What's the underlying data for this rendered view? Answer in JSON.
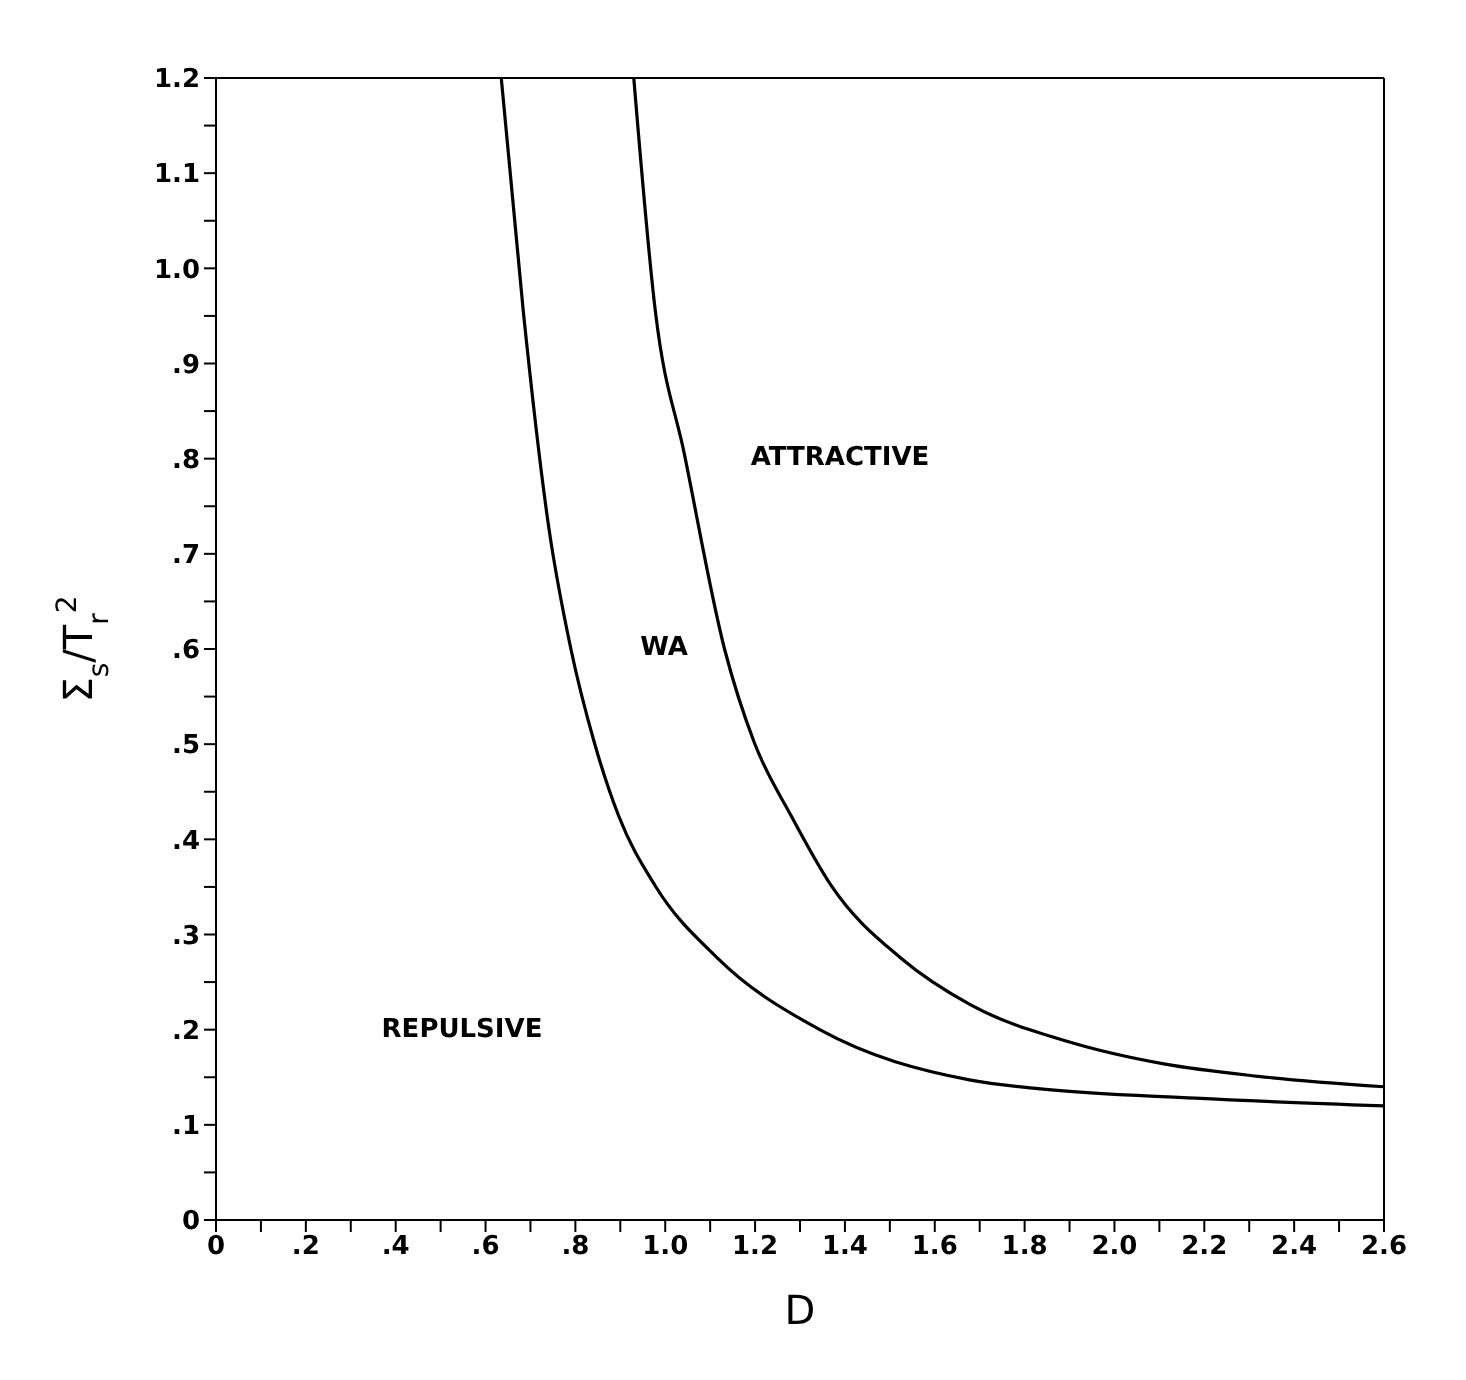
{
  "chart_data": {
    "type": "line",
    "xlabel": "D",
    "ylabel": "Σ$_{s}$/T$_{r}$$^{2}$",
    "xlim": [
      0,
      2.6
    ],
    "ylim": [
      0,
      1.2
    ],
    "xticks": [
      0,
      {
        "value": 0.1,
        "label": null
      },
      {
        "value": 0.2,
        "label": ".2"
      },
      {
        "value": 0.3,
        "label": null
      },
      {
        "value": 0.4,
        "label": ".4"
      },
      {
        "value": 0.5,
        "label": null
      },
      {
        "value": 0.6,
        "label": ".6"
      },
      {
        "value": 0.7,
        "label": null
      },
      {
        "value": 0.8,
        "label": ".8"
      },
      {
        "value": 0.9,
        "label": null
      },
      {
        "value": 1.0,
        "label": "1.0"
      },
      {
        "value": 1.1,
        "label": null
      },
      1.2,
      {
        "value": 1.3,
        "label": null
      },
      1.4,
      {
        "value": 1.5,
        "label": null
      },
      1.6,
      {
        "value": 1.7,
        "label": null
      },
      1.8,
      {
        "value": 1.9,
        "label": null
      },
      {
        "value": 2.0,
        "label": "2.0"
      },
      {
        "value": 2.1,
        "label": null
      },
      2.2,
      {
        "value": 2.3,
        "label": null
      },
      2.4,
      {
        "value": 2.5,
        "label": null
      },
      2.6
    ],
    "yticks": [
      0,
      {
        "value": 0.05,
        "label": null
      },
      {
        "value": 0.1,
        "label": ".1"
      },
      {
        "value": 0.15,
        "label": null
      },
      {
        "value": 0.2,
        "label": ".2"
      },
      {
        "value": 0.25,
        "label": null
      },
      {
        "value": 0.3,
        "label": ".3"
      },
      {
        "value": 0.35,
        "label": null
      },
      {
        "value": 0.4,
        "label": ".4"
      },
      {
        "value": 0.45,
        "label": null
      },
      {
        "value": 0.5,
        "label": ".5"
      },
      {
        "value": 0.55,
        "label": null
      },
      {
        "value": 0.6,
        "label": ".6"
      },
      {
        "value": 0.65,
        "label": null
      },
      {
        "value": 0.7,
        "label": ".7"
      },
      {
        "value": 0.75,
        "label": null
      },
      {
        "value": 0.8,
        "label": ".8"
      },
      {
        "value": 0.85,
        "label": null
      },
      {
        "value": 0.9,
        "label": ".9"
      },
      {
        "value": 0.95,
        "label": null
      },
      {
        "value": 1.0,
        "label": "1.0"
      },
      {
        "value": 1.05,
        "label": null
      },
      1.1,
      {
        "value": 1.15,
        "label": null
      },
      1.2
    ],
    "marker": "none",
    "line_style": "solid",
    "series": [
      {
        "color": "#000000",
        "x": [
          0.635,
          0.684,
          0.741,
          0.79,
          0.842,
          0.896,
          0.978,
          1.117,
          1.344,
          1.68,
          1.83,
          2.18,
          2.6
        ],
        "values": [
          1.2,
          0.955,
          0.727,
          0.6,
          0.502,
          0.425,
          0.351,
          0.275,
          0.2,
          0.147,
          0.138,
          0.128,
          0.12
        ]
      },
      {
        "color": "#000000",
        "x": [
          0.93,
          0.978,
          1.043,
          1.132,
          1.198,
          1.28,
          1.37,
          1.525,
          1.68,
          1.9,
          2.11,
          2.32,
          2.6
        ],
        "values": [
          1.2,
          0.955,
          0.804,
          0.6,
          0.502,
          0.425,
          0.351,
          0.275,
          0.226,
          0.187,
          0.164,
          0.151,
          0.14
        ]
      }
    ],
    "annotations": [
      "ATTRACTIVE",
      "WA",
      "REPULSIVE"
    ]
  }
}
